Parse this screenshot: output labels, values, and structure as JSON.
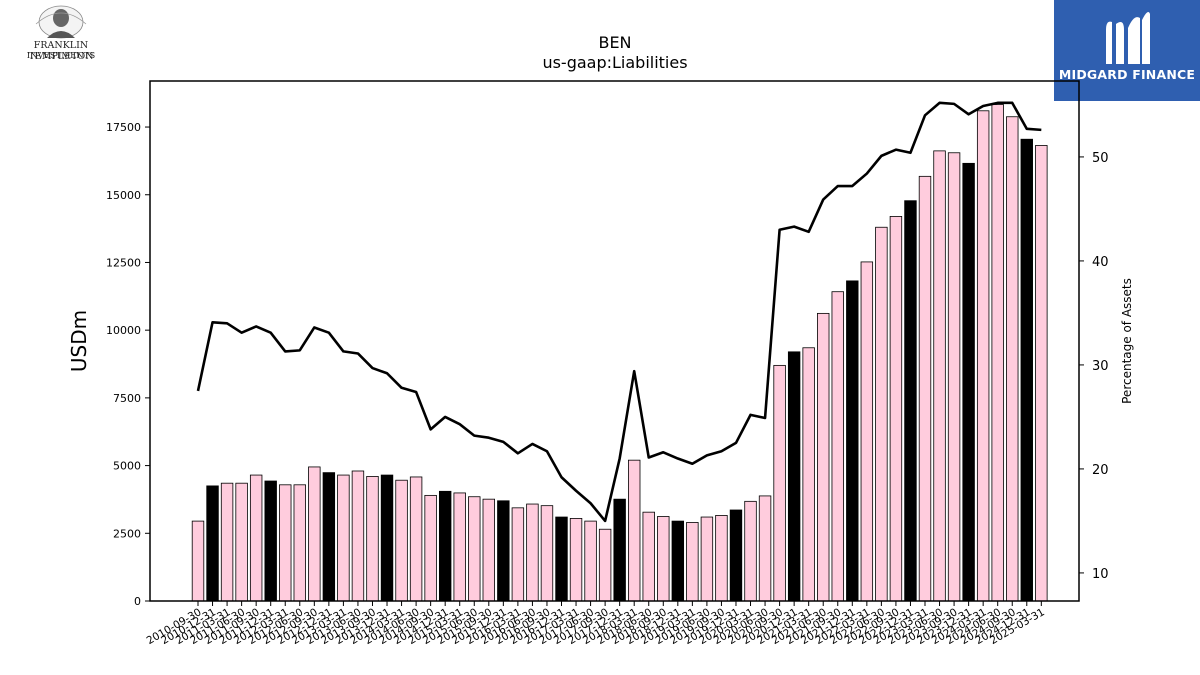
{
  "brand_left": {
    "line1": "FRANKLIN TEMPLETON",
    "line2": "INVESTMENTS",
    "icon": "portrait-medallion-icon"
  },
  "brand_right": {
    "name": "MIDGARD FINANCE",
    "icon": "midgard-m-icon"
  },
  "colors": {
    "bar_pink": "#ffccdd",
    "bar_black": "#000000",
    "line": "#000000",
    "brand_blue": "#2f5fb0"
  },
  "chart_data": {
    "type": "bar",
    "title": "BEN",
    "subtitle": "us-gaap:Liabilities",
    "ylabel": "USDm",
    "y2label": "Percentage of Assets",
    "ylim": [
      0,
      19200
    ],
    "y2lim": [
      7.3,
      57.3
    ],
    "yticks": [
      0,
      2500,
      5000,
      7500,
      10000,
      12500,
      15000,
      17500
    ],
    "y2ticks": [
      10,
      20,
      30,
      40,
      50
    ],
    "categories": [
      "2010-09-30",
      "2010-12-31",
      "2011-03-31",
      "2011-06-30",
      "2011-09-30",
      "2011-12-31",
      "2012-03-31",
      "2012-06-30",
      "2012-09-30",
      "2012-12-31",
      "2013-03-31",
      "2013-06-30",
      "2013-09-30",
      "2013-12-31",
      "2014-03-31",
      "2014-06-30",
      "2014-09-30",
      "2014-12-31",
      "2015-03-31",
      "2015-06-30",
      "2015-09-30",
      "2015-12-31",
      "2016-03-31",
      "2016-06-30",
      "2016-09-30",
      "2016-12-31",
      "2017-03-31",
      "2017-06-30",
      "2017-09-30",
      "2017-12-31",
      "2018-03-31",
      "2018-06-30",
      "2018-09-30",
      "2018-12-31",
      "2019-03-31",
      "2019-06-30",
      "2019-09-30",
      "2019-12-31",
      "2020-03-31",
      "2020-06-30",
      "2020-09-30",
      "2020-12-31",
      "2021-03-31",
      "2021-06-30",
      "2021-09-30",
      "2021-12-31",
      "2022-03-31",
      "2022-06-30",
      "2022-09-30",
      "2022-12-31",
      "2023-03-31",
      "2023-06-30",
      "2023-09-30",
      "2023-12-31",
      "2024-03-31",
      "2024-06-30",
      "2024-09-30",
      "2024-12-31",
      "2025-03-31"
    ],
    "series": [
      {
        "type": "bar",
        "values": [
          2950,
          4250,
          4350,
          4350,
          4650,
          4430,
          4290,
          4290,
          4950,
          4740,
          4650,
          4800,
          4600,
          4650,
          4460,
          4580,
          3900,
          4050,
          3990,
          3850,
          3760,
          3700,
          3440,
          3580,
          3520,
          3100,
          3050,
          2950,
          2650,
          3760,
          5200,
          3280,
          3120,
          2950,
          2900,
          3100,
          3160,
          3360,
          3680,
          3880,
          8700,
          9200,
          9350,
          10620,
          11420,
          11820,
          12520,
          13800,
          14200,
          14780,
          15680,
          16620,
          16550,
          16160,
          18100,
          18330,
          17880,
          17050,
          16820
        ]
      },
      {
        "type": "line",
        "values": [
          27.5,
          34.1,
          34.0,
          33.1,
          33.7,
          33.1,
          31.3,
          31.4,
          33.6,
          33.1,
          31.3,
          31.1,
          29.7,
          29.2,
          27.8,
          27.4,
          23.8,
          25.0,
          24.3,
          23.2,
          23.0,
          22.6,
          21.5,
          22.4,
          21.7,
          19.2,
          17.9,
          16.7,
          15.0,
          21.0,
          29.4,
          21.1,
          21.6,
          21.0,
          20.5,
          21.3,
          21.7,
          22.5,
          25.2,
          24.9,
          43.0,
          43.3,
          42.8,
          45.9,
          47.2,
          47.2,
          48.4,
          50.1,
          50.7,
          50.4,
          54.0,
          55.2,
          55.1,
          54.1,
          54.9,
          55.2,
          55.2,
          52.7,
          52.6
        ]
      }
    ]
  }
}
